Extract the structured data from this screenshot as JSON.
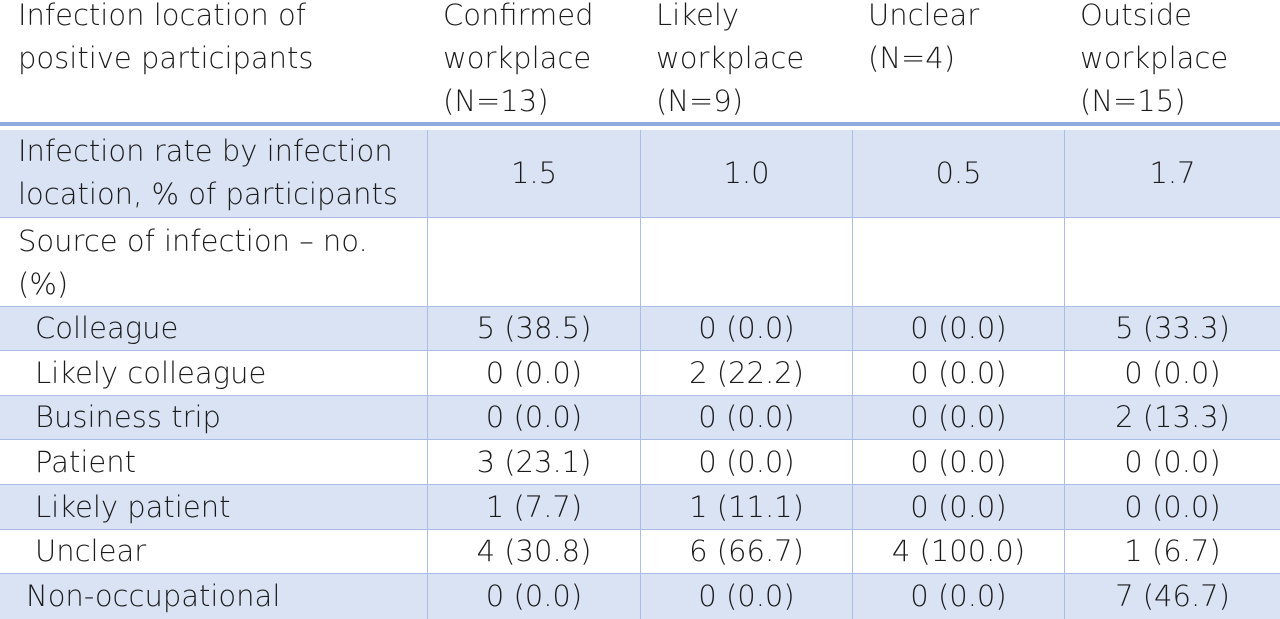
{
  "header": {
    "col0": "Infection location of\npositive participants",
    "col1": "Confirmed\nworkplace\n(N=13)",
    "col2": "Likely\nworkplace\n(N=9)",
    "col3": "Unclear\n(N=4)",
    "col4": "Outside\nworkplace\n(N=15)"
  },
  "rate_row": {
    "label": "Infection rate by infection\nlocation, % of participants",
    "values": [
      "1.5",
      "1.0",
      "0.5",
      "1.7"
    ]
  },
  "source_row": {
    "label": "Source of infection – no.\n(%)"
  },
  "rows": [
    {
      "label": "Colleague",
      "values": [
        "5 (38.5)",
        "0 (0.0)",
        "0 (0.0)",
        "5 (33.3)"
      ]
    },
    {
      "label": "Likely colleague",
      "values": [
        "0 (0.0)",
        "2 (22.2)",
        "0 (0.0)",
        "0 (0.0)"
      ]
    },
    {
      "label": "Business trip",
      "values": [
        "0 (0.0)",
        "0 (0.0)",
        "0 (0.0)",
        "2 (13.3)"
      ]
    },
    {
      "label": "Patient",
      "values": [
        "3 (23.1)",
        "0 (0.0)",
        "0 (0.0)",
        "0 (0.0)"
      ]
    },
    {
      "label": "Likely patient",
      "values": [
        "1 (7.7)",
        "1 (11.1)",
        "0 (0.0)",
        "0 (0.0)"
      ]
    },
    {
      "label": "Unclear",
      "values": [
        "4 (30.8)",
        "6 (66.7)",
        "4 (100.0)",
        "1 (6.7)"
      ]
    },
    {
      "label": "Non-occupational",
      "values": [
        "0 (0.0)",
        "0 (0.0)",
        "0 (0.0)",
        "7 (46.7)"
      ]
    }
  ],
  "colors": {
    "band": "#dae3f3",
    "rule": "#8faadc",
    "grid": "#a9bde6"
  }
}
